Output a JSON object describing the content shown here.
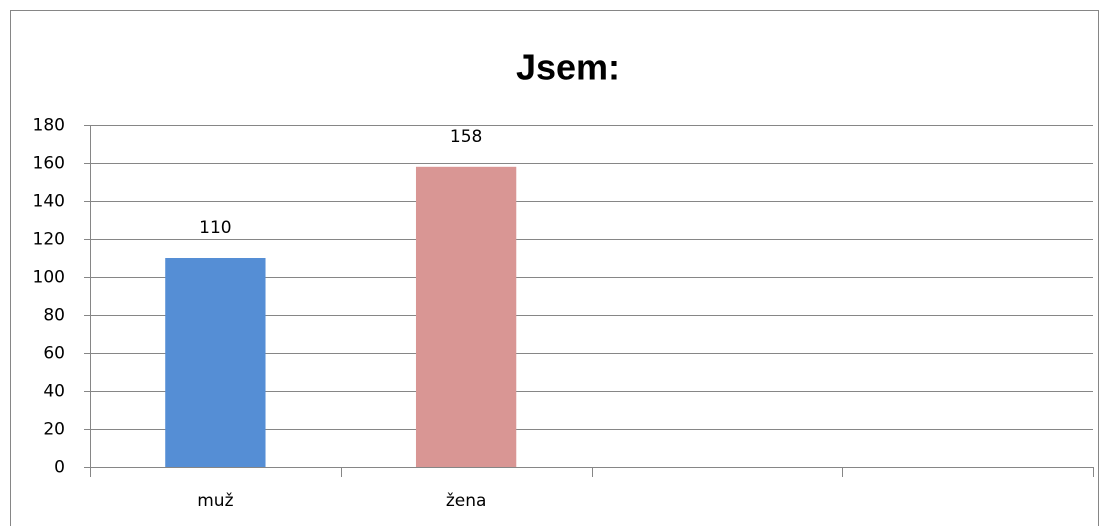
{
  "chart_data": {
    "type": "bar",
    "title": "Jsem:",
    "categories": [
      "muž",
      "žena",
      null,
      null
    ],
    "values": [
      110,
      158,
      null,
      null
    ],
    "colors": [
      "#558ed5",
      "#d99694"
    ],
    "ylim": [
      0,
      180
    ],
    "yticks": [
      0,
      20,
      40,
      60,
      80,
      100,
      120,
      140,
      160,
      180
    ],
    "grid": true
  }
}
